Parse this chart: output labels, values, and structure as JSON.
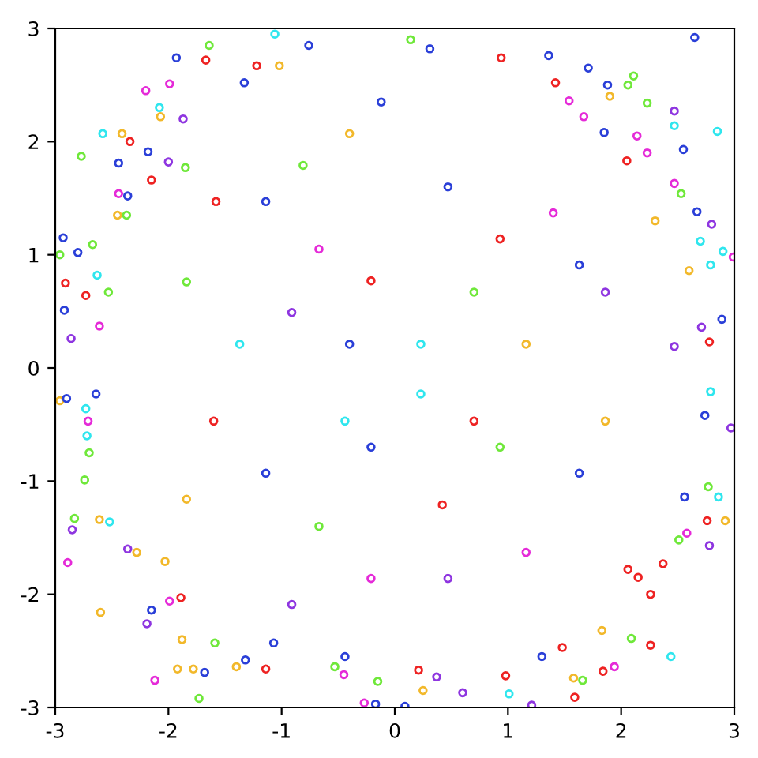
{
  "chart_data": {
    "type": "scatter",
    "marker": "circle",
    "grid": false,
    "xlim": [
      -3,
      3
    ],
    "ylim": [
      -3,
      3
    ],
    "xticks": [
      -3,
      -2,
      -1,
      0,
      1,
      2,
      3
    ],
    "yticks": [
      -3,
      -2,
      -1,
      0,
      1,
      2,
      3
    ],
    "series": [
      {
        "x": [
          -1.93,
          -1.67,
          -1.64,
          -1.06,
          -1.22,
          -1.02,
          -0.76,
          -1.33,
          -1.99,
          -2.2,
          -2.08,
          -2.07,
          -1.87,
          -2.58,
          -2.41,
          -2.34,
          -2.77,
          -2.18,
          -2.44,
          -2.0,
          -1.85,
          -2.15,
          -2.93,
          -2.8,
          -2.96,
          -2.67,
          -2.63,
          -2.91,
          -2.73,
          -2.92,
          -2.53,
          -2.86,
          -2.61,
          -2.44,
          -2.36,
          -2.45,
          -2.37,
          -1.58,
          -1.14,
          -0.81,
          -0.4,
          -0.12,
          -0.67,
          -0.21,
          -0.91,
          -1.37,
          -1.84,
          -0.4,
          2.65,
          0.14,
          0.31,
          0.94,
          1.36,
          1.71,
          1.42,
          1.88,
          2.11,
          2.06,
          1.9,
          2.23,
          2.47,
          2.47,
          2.85,
          2.55,
          2.14,
          2.23,
          2.05,
          2.47,
          2.67,
          2.8,
          2.99,
          2.9,
          2.79,
          2.7,
          2.6,
          2.89,
          2.78,
          2.71,
          2.47,
          2.3,
          2.53,
          1.54,
          1.67,
          1.85,
          0.47,
          0.93,
          1.4,
          0.7,
          1.86,
          0.23,
          1.16,
          1.63,
          -2.96,
          -2.9,
          -2.64,
          -2.73,
          -2.71,
          -2.72,
          -2.7,
          -2.74,
          -2.83,
          -2.85,
          -2.61,
          -2.52,
          -2.89,
          -2.6,
          -2.36,
          -2.28,
          -2.03,
          -2.15,
          -2.19,
          -2.12,
          -1.88,
          -1.92,
          -1.78,
          -1.68,
          -1.73,
          -1.59,
          -1.4,
          -1.32,
          -1.14,
          -1.07,
          -0.27,
          -0.17,
          -0.15,
          -0.44,
          -0.53,
          -0.45,
          -1.99,
          -1.89,
          -1.6,
          -1.14,
          -0.67,
          -0.21,
          -0.44,
          -0.91,
          -1.84,
          -0.21,
          2.97,
          2.79,
          2.74,
          2.92,
          2.76,
          2.86,
          2.78,
          2.56,
          2.77,
          2.58,
          2.51,
          2.37,
          2.26,
          2.26,
          2.44,
          2.09,
          1.94,
          1.83,
          1.84,
          1.66,
          1.58,
          1.59,
          1.21,
          1.01,
          0.98,
          0.6,
          0.37,
          0.25,
          0.09,
          0.21,
          1.3,
          1.48,
          2.06,
          2.15,
          0.42,
          0.93,
          1.63,
          0.47,
          1.16,
          0.23,
          1.86,
          0.7
        ],
        "values": [
          2.74,
          2.72,
          2.85,
          2.95,
          2.67,
          2.67,
          2.85,
          2.52,
          2.51,
          2.45,
          2.3,
          2.22,
          2.2,
          2.07,
          2.07,
          2.0,
          1.87,
          1.91,
          1.81,
          1.82,
          1.77,
          1.66,
          1.15,
          1.02,
          1.0,
          1.09,
          0.82,
          0.75,
          0.64,
          0.51,
          0.67,
          0.26,
          0.37,
          1.54,
          1.52,
          1.35,
          1.35,
          1.47,
          1.47,
          1.79,
          2.07,
          2.35,
          1.05,
          0.77,
          0.49,
          0.21,
          0.76,
          0.21,
          2.92,
          2.9,
          2.82,
          2.74,
          2.76,
          2.65,
          2.52,
          2.5,
          2.58,
          2.5,
          2.4,
          2.34,
          2.27,
          2.14,
          2.09,
          1.93,
          2.05,
          1.9,
          1.83,
          1.63,
          1.38,
          1.27,
          0.98,
          1.03,
          0.91,
          1.12,
          0.86,
          0.43,
          0.23,
          0.36,
          0.19,
          1.3,
          1.54,
          2.36,
          2.22,
          2.08,
          1.6,
          1.14,
          1.37,
          0.67,
          0.67,
          0.21,
          0.21,
          0.91,
          -0.29,
          -0.27,
          -0.23,
          -0.36,
          -0.47,
          -0.6,
          -0.75,
          -0.99,
          -1.33,
          -1.43,
          -1.34,
          -1.36,
          -1.72,
          -2.16,
          -1.6,
          -1.63,
          -1.71,
          -2.14,
          -2.26,
          -2.76,
          -2.4,
          -2.66,
          -2.66,
          -2.69,
          -2.92,
          -2.43,
          -2.64,
          -2.58,
          -2.66,
          -2.43,
          -2.96,
          -2.97,
          -2.77,
          -2.55,
          -2.64,
          -2.71,
          -2.06,
          -2.03,
          -0.47,
          -0.93,
          -1.4,
          -1.86,
          -0.47,
          -2.09,
          -1.16,
          -0.7,
          -0.53,
          -0.21,
          -0.42,
          -1.35,
          -1.35,
          -1.14,
          -1.57,
          -1.14,
          -1.05,
          -1.46,
          -1.52,
          -1.73,
          -2.0,
          -2.45,
          -2.55,
          -2.39,
          -2.64,
          -2.32,
          -2.68,
          -2.76,
          -2.74,
          -2.91,
          -2.98,
          -2.88,
          -2.72,
          -2.87,
          -2.73,
          -2.85,
          -2.99,
          -2.67,
          -2.55,
          -2.47,
          -1.78,
          -1.85,
          -1.21,
          -0.7,
          -0.93,
          -1.86,
          -1.63,
          -0.23,
          -0.47,
          -0.47
        ],
        "colors": [
          "#2a3fd8",
          "#ee2222",
          "#6fe83a",
          "#2fe6ee",
          "#ee2222",
          "#f2b82a",
          "#2a3fd8",
          "#2a3fd8",
          "#e52ad8",
          "#e52ad8",
          "#2fe6ee",
          "#f2b82a",
          "#8e35e0",
          "#2fe6ee",
          "#f2b82a",
          "#ee2222",
          "#6fe83a",
          "#2a3fd8",
          "#2a3fd8",
          "#8e35e0",
          "#6fe83a",
          "#ee2222",
          "#2a3fd8",
          "#2a3fd8",
          "#6fe83a",
          "#6fe83a",
          "#2fe6ee",
          "#ee2222",
          "#ee2222",
          "#2a3fd8",
          "#6fe83a",
          "#8e35e0",
          "#e52ad8",
          "#e52ad8",
          "#2a3fd8",
          "#f2b82a",
          "#6fe83a",
          "#ee2222",
          "#2a3fd8",
          "#6fe83a",
          "#f2b82a",
          "#2a3fd8",
          "#e52ad8",
          "#ee2222",
          "#8e35e0",
          "#2fe6ee",
          "#6fe83a",
          "#2a3fd8",
          "#2a3fd8",
          "#6fe83a",
          "#2a3fd8",
          "#ee2222",
          "#2a3fd8",
          "#2a3fd8",
          "#ee2222",
          "#2a3fd8",
          "#6fe83a",
          "#6fe83a",
          "#f2b82a",
          "#6fe83a",
          "#8e35e0",
          "#2fe6ee",
          "#2fe6ee",
          "#2a3fd8",
          "#e52ad8",
          "#e52ad8",
          "#ee2222",
          "#e52ad8",
          "#2a3fd8",
          "#8e35e0",
          "#e52ad8",
          "#2fe6ee",
          "#2fe6ee",
          "#2fe6ee",
          "#f2b82a",
          "#2a3fd8",
          "#ee2222",
          "#8e35e0",
          "#8e35e0",
          "#f2b82a",
          "#6fe83a",
          "#e52ad8",
          "#e52ad8",
          "#2a3fd8",
          "#2a3fd8",
          "#ee2222",
          "#e52ad8",
          "#6fe83a",
          "#8e35e0",
          "#2fe6ee",
          "#f2b82a",
          "#2a3fd8",
          "#f2b82a",
          "#2a3fd8",
          "#2a3fd8",
          "#2fe6ee",
          "#e52ad8",
          "#2fe6ee",
          "#6fe83a",
          "#6fe83a",
          "#6fe83a",
          "#8e35e0",
          "#f2b82a",
          "#2fe6ee",
          "#e52ad8",
          "#f2b82a",
          "#8e35e0",
          "#f2b82a",
          "#f2b82a",
          "#2a3fd8",
          "#8e35e0",
          "#e52ad8",
          "#f2b82a",
          "#f2b82a",
          "#f2b82a",
          "#2a3fd8",
          "#6fe83a",
          "#6fe83a",
          "#f2b82a",
          "#2a3fd8",
          "#ee2222",
          "#2a3fd8",
          "#e52ad8",
          "#2a3fd8",
          "#6fe83a",
          "#2a3fd8",
          "#6fe83a",
          "#e52ad8",
          "#e52ad8",
          "#ee2222",
          "#ee2222",
          "#2a3fd8",
          "#6fe83a",
          "#e52ad8",
          "#2fe6ee",
          "#8e35e0",
          "#f2b82a",
          "#2a3fd8",
          "#8e35e0",
          "#2fe6ee",
          "#2a3fd8",
          "#f2b82a",
          "#ee2222",
          "#2fe6ee",
          "#8e35e0",
          "#2a3fd8",
          "#6fe83a",
          "#e52ad8",
          "#6fe83a",
          "#ee2222",
          "#ee2222",
          "#ee2222",
          "#2fe6ee",
          "#6fe83a",
          "#e52ad8",
          "#f2b82a",
          "#ee2222",
          "#6fe83a",
          "#f2b82a",
          "#ee2222",
          "#8e35e0",
          "#2fe6ee",
          "#ee2222",
          "#8e35e0",
          "#8e35e0",
          "#f2b82a",
          "#2a3fd8",
          "#ee2222",
          "#2a3fd8",
          "#ee2222",
          "#ee2222",
          "#ee2222",
          "#ee2222",
          "#6fe83a",
          "#2a3fd8",
          "#8e35e0",
          "#e52ad8",
          "#2fe6ee",
          "#f2b82a",
          "#ee2222"
        ]
      }
    ]
  }
}
